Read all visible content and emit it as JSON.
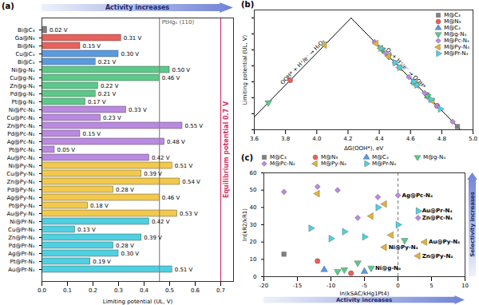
{
  "chart_data": [
    {
      "panel": "(a)",
      "type": "bar",
      "orientation": "horizontal",
      "title": "Activity increases",
      "categories": [
        "Bi@C₃",
        "Ga@N₃",
        "Bi@N₃",
        "Cu@C₄",
        "Bi@C₄",
        "Ni@g-N₄",
        "Cu@g-N₄",
        "Zn@g-N₄",
        "Pd@g-N₄",
        "Pt@g-N₄",
        "Ni@Pc-N₄",
        "Cu@Pc-N₄",
        "Zn@Pc-N₄",
        "Pd@Pc-N₄",
        "Ag@Pc-N₄",
        "Pt@Pc-N₄",
        "Au@Pc-N₄",
        "Ni@Py-N₄",
        "Cu@Py-N₄",
        "Zn@Py-N₄",
        "Pd@Py-N₄",
        "Ag@Py-N₄",
        "Pt@Py-N₄",
        "Au@Py-N₄",
        "Ni@Pr-N₄",
        "Cu@Pr-N₄",
        "Zn@Pr-N₄",
        "Pd@Pr-N₄",
        "Ag@Pr-N₄",
        "Pt@Pr-N₄",
        "Au@Pr-N₄"
      ],
      "values": [
        0.02,
        0.31,
        0.15,
        0.3,
        0.21,
        0.5,
        0.46,
        0.22,
        0.21,
        0.17,
        0.33,
        0.23,
        0.55,
        0.15,
        0.48,
        0.05,
        0.42,
        0.51,
        0.39,
        0.54,
        0.28,
        0.46,
        0.18,
        0.53,
        0.42,
        0.13,
        0.39,
        0.28,
        0.3,
        0.19,
        0.51
      ],
      "value_labels": [
        "0.02 V",
        "0.31 V",
        "0.15 V",
        "0.30 V",
        "0.21 V",
        "0.50 V",
        "0.46 V",
        "0.22 V",
        "0.21 V",
        "0.17 V",
        "0.33 V",
        "0.23 V",
        "0.55 V",
        "0.15 V",
        "0.48 V",
        "0.05 V",
        "0.42 V",
        "0.51 V",
        "0.39 V",
        "0.54 V",
        "0.28 V",
        "0.46 V",
        "0.18 V",
        "0.53 V",
        "0.42 V",
        "0.13 V",
        "0.39 V",
        "0.28 V",
        "0.30 V",
        "0.19 V",
        "0.51 V"
      ],
      "colors": [
        "#808080",
        "#e8615c",
        "#e8615c",
        "#5a9be0",
        "#5a9be0",
        "#5cc98a",
        "#5cc98a",
        "#5cc98a",
        "#5cc98a",
        "#5cc98a",
        "#b98ae0",
        "#b98ae0",
        "#b98ae0",
        "#b98ae0",
        "#b98ae0",
        "#b98ae0",
        "#b98ae0",
        "#f2c94c",
        "#f2c94c",
        "#f2c94c",
        "#f2c94c",
        "#f2c94c",
        "#f2c94c",
        "#f2c94c",
        "#4fd0e0",
        "#4fd0e0",
        "#4fd0e0",
        "#4fd0e0",
        "#4fd0e0",
        "#4fd0e0",
        "#4fd0e0"
      ],
      "data_labels": true,
      "xlabel": "Limiting potential (UL, V)",
      "xlim": [
        0,
        0.75
      ],
      "xticks": [
        {
          "value": 0,
          "label": "0.0"
        },
        0.1,
        0.2,
        0.3,
        0.4,
        0.5,
        0.6,
        0.7
      ],
      "reference_lines": [
        {
          "value": 0.46,
          "label": "PtHg₄ (110)",
          "color": "#888888",
          "line_style": "dashed"
        },
        {
          "value": 0.7,
          "label": "Equilibrium potential 0.7 V",
          "color": "#d6336c",
          "line_style": "dashed"
        }
      ]
    },
    {
      "panel": "(b)",
      "type": "scatter",
      "xlabel": "ΔG(OOH*), eV",
      "ylabel": "Limiting potential (UL, V)",
      "xlim": [
        3.6,
        5.0
      ],
      "xticks": [
        3.6,
        3.8,
        {
          "value": 4,
          "label": "4.0"
        },
        4.2,
        4.4,
        4.6,
        4.8,
        {
          "value": 5,
          "label": "5.0"
        }
      ],
      "ylim": [
        0,
        0.75
      ],
      "yticks": [
        0,
        0.1,
        0.2,
        0.3,
        0.4,
        0.5,
        0.6,
        0.7
      ],
      "tick_labels": "x",
      "legend": "top-right",
      "lines": [
        {
          "label": "OOH* + H⁺/e⁻ → H₂O₂",
          "color": "#000000",
          "x": [
            3.6,
            4.22
          ],
          "values": [
            0.08,
            0.7
          ]
        },
        {
          "label": "O₂ + H⁺/e⁻ → OOH*",
          "color": "#000000",
          "x": [
            4.22,
            4.92
          ],
          "values": [
            0.7,
            0
          ]
        }
      ],
      "series": [
        {
          "name": "M@C₃",
          "color": "#808080",
          "marker": "square",
          "x": [
            4.9
          ],
          "values": [
            0.02
          ]
        },
        {
          "name": "M@N₃",
          "color": "#e8615c",
          "marker": "circle",
          "x": [
            3.83,
            4.77
          ],
          "values": [
            0.31,
            0.15
          ]
        },
        {
          "name": "M@C₄",
          "color": "#5a9be0",
          "marker": "triangle",
          "x": [
            4.62,
            4.71
          ],
          "values": [
            0.3,
            0.21
          ]
        },
        {
          "name": "M@g-N₄",
          "color": "#5cc98a",
          "marker": "triangle-down",
          "x": [
            4.42,
            4.46,
            4.7,
            4.71,
            3.69
          ],
          "values": [
            0.5,
            0.46,
            0.22,
            0.21,
            0.17
          ]
        },
        {
          "name": "M@Pc-N₄",
          "color": "#b98ae0",
          "marker": "diamond",
          "x": [
            4.59,
            4.69,
            4.37,
            4.77,
            4.44,
            4.87,
            4.5
          ],
          "values": [
            0.33,
            0.23,
            0.55,
            0.15,
            0.48,
            0.05,
            0.42
          ]
        },
        {
          "name": "M@Py-N₄",
          "color": "#e0b43a",
          "marker": "triangle-left",
          "x": [
            4.41,
            4.53,
            4.38,
            4.64,
            4.46,
            4.74,
            4.05
          ],
          "values": [
            0.51,
            0.39,
            0.54,
            0.28,
            0.46,
            0.18,
            0.53
          ]
        },
        {
          "name": "M@Pr-N₄",
          "color": "#4fd0e0",
          "marker": "triangle-right",
          "x": [
            4.5,
            4.79,
            4.53,
            4.64,
            4.62,
            4.73,
            4.41
          ],
          "values": [
            0.42,
            0.13,
            0.39,
            0.28,
            0.3,
            0.19,
            0.51
          ]
        }
      ]
    },
    {
      "panel": "(c)",
      "type": "scatter",
      "xlabel": "ln(kSAC/kHg1Pt4)",
      "ylabel": "ln(kR2/kR1)",
      "xlim": [
        -20,
        10
      ],
      "xticks": [
        -20,
        -15,
        -10,
        -5,
        0,
        5,
        10
      ],
      "ylim": [
        0,
        60
      ],
      "yticks": [
        0,
        10,
        20,
        30,
        40,
        50,
        60
      ],
      "legend": "top-left",
      "reference_lines": [
        {
          "value": 0,
          "color": "#888888",
          "line_style": "dashed"
        }
      ],
      "annotations": [
        "Selectivity increases",
        "Activity increases"
      ],
      "point_labels": [
        {
          "text": "Ag@Pc-N₄",
          "x": 0,
          "y": 47
        },
        {
          "text": "Au@Pr-N₄",
          "x": 3,
          "y": 38
        },
        {
          "text": "Zn@Pc-N₄",
          "x": 3,
          "y": 34
        },
        {
          "text": "Au@Py-N₄",
          "x": 4,
          "y": 20
        },
        {
          "text": "Ni@Py-N₄",
          "x": -2,
          "y": 17
        },
        {
          "text": "Ni@g-N₄",
          "x": -4,
          "y": 5
        },
        {
          "text": "Zn@Py-N₄",
          "x": 3,
          "y": 12
        }
      ],
      "series": [
        {
          "name": "M@C₃",
          "color": "#808080",
          "marker": "square",
          "x": [
            -17
          ],
          "values": [
            13
          ]
        },
        {
          "name": "M@N₃",
          "color": "#e8615c",
          "marker": "circle",
          "x": [
            -12,
            -7
          ],
          "values": [
            9,
            2
          ]
        },
        {
          "name": "M@C₄",
          "color": "#5a9be0",
          "marker": "triangle",
          "x": [
            -5,
            -11
          ],
          "values": [
            3,
            4
          ]
        },
        {
          "name": "M@g-N₄",
          "color": "#5cc98a",
          "marker": "triangle-down",
          "x": [
            -9,
            -8,
            -4,
            -6,
            1
          ],
          "values": [
            3,
            4,
            5,
            8,
            21
          ]
        },
        {
          "name": "M@Pc-N₄",
          "color": "#b98ae0",
          "marker": "diamond",
          "x": [
            -17,
            -12,
            -9,
            -6,
            -3,
            0,
            3
          ],
          "values": [
            49,
            52,
            50,
            34,
            46,
            47,
            34
          ]
        },
        {
          "name": "M@Py-N₄",
          "color": "#e0b43a",
          "marker": "triangle-left",
          "x": [
            -12,
            -2,
            -4,
            4,
            -1,
            -2,
            3
          ],
          "values": [
            48,
            42,
            35,
            20,
            24,
            17,
            12
          ]
        },
        {
          "name": "M@Pr-N₄",
          "color": "#4fd0e0",
          "marker": "triangle-right",
          "x": [
            -13,
            -10,
            -8,
            -5,
            -3,
            0,
            3
          ],
          "values": [
            28,
            22,
            26,
            23,
            40,
            30,
            38
          ]
        }
      ]
    }
  ]
}
